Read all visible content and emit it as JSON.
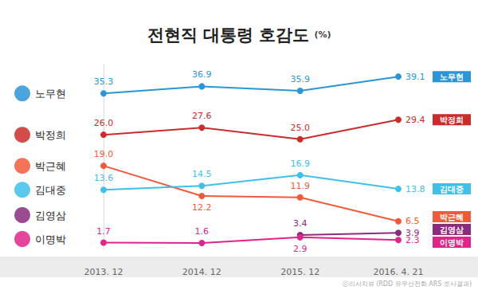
{
  "chart_data": {
    "type": "line",
    "title": "전현직 대통령 호감도",
    "unit": "(%)",
    "source": "ⓒ리서치뷰 (RDD 유무선전화 ARS 조사결과)",
    "categories": [
      "2013. 12",
      "2014. 12",
      "2015. 12",
      "2016. 4. 21"
    ],
    "ylim": [
      0,
      42
    ],
    "tick_labels": "x",
    "grid": false,
    "data_labels": true,
    "marker": "circle",
    "series": [
      {
        "name": "노무현",
        "color": "#2b95d6",
        "values": [
          35.3,
          36.9,
          35.9,
          39.1
        ],
        "value_labels": [
          "35.3",
          "36.9",
          "35.9",
          "39.1"
        ]
      },
      {
        "name": "박정희",
        "color": "#cc2b2b",
        "values": [
          26.0,
          27.6,
          25.0,
          29.4
        ],
        "value_labels": [
          "26.0",
          "27.6",
          "25.0",
          "29.4"
        ]
      },
      {
        "name": "박근혜",
        "color": "#f05a3a",
        "values": [
          19.0,
          12.2,
          11.9,
          6.5
        ],
        "value_labels": [
          "19.0",
          "12.2",
          "11.9",
          "6.5"
        ]
      },
      {
        "name": "김대중",
        "color": "#3ec0ea",
        "values": [
          13.6,
          14.5,
          16.9,
          13.8
        ],
        "value_labels": [
          "13.6",
          "14.5",
          "16.9",
          "13.8"
        ]
      },
      {
        "name": "김영삼",
        "color": "#8a2c7e",
        "values": [
          null,
          null,
          3.4,
          3.9
        ],
        "value_labels": [
          null,
          null,
          "3.4",
          "3.9"
        ]
      },
      {
        "name": "이명박",
        "color": "#e0248a",
        "values": [
          1.7,
          1.6,
          2.9,
          2.3
        ],
        "value_labels": [
          "1.7",
          "1.6",
          "2.9",
          "2.3"
        ]
      }
    ]
  }
}
